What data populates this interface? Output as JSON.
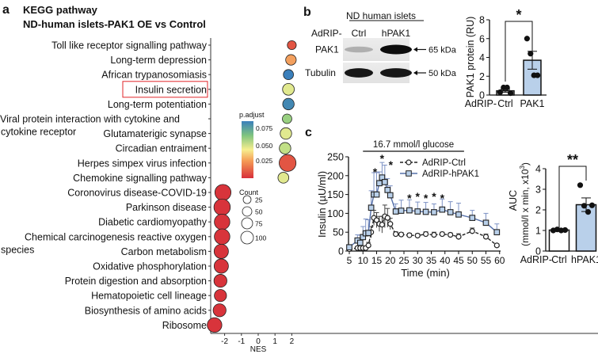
{
  "panel_labels": {
    "a": "a",
    "b": "b",
    "c": "c"
  },
  "colors": {
    "high_sig": "#d7303a",
    "orange": "#f08a4b",
    "yellow": "#f6ef9c",
    "light_green": "#c3df8a",
    "green": "#7fc47f",
    "blue": "#3a7fbb",
    "bar_blue": "#b9d0ea",
    "line_blue": "#5570aa",
    "highlight_box": "#e0262a"
  },
  "chart_data": [
    {
      "id": "a",
      "type": "scatter",
      "title": "KEGG pathway",
      "subtitle": "ND-human islets-PAK1 OE vs Control",
      "xlabel": "NES",
      "xticks": [
        "-2",
        "-1",
        "0",
        "1",
        "2"
      ],
      "xlim": [
        -2.8,
        2.1
      ],
      "highlighted": "Insulin secretion",
      "pathways": [
        {
          "label": [
            "Toll like receptor signalling pathway"
          ],
          "nes": 2.0,
          "count": 18,
          "p_adjust": 0.01
        },
        {
          "label": [
            "Long-term depression"
          ],
          "nes": 1.95,
          "count": 32,
          "p_adjust": 0.03
        },
        {
          "label": [
            "African trypanosomiasis"
          ],
          "nes": 1.8,
          "count": 28,
          "p_adjust": 0.09
        },
        {
          "label": [
            "Insulin secretion"
          ],
          "nes": 1.8,
          "count": 45,
          "p_adjust": 0.055
        },
        {
          "label": [
            "Long-term potentiation"
          ],
          "nes": 1.8,
          "count": 42,
          "p_adjust": 0.088
        },
        {
          "label": [
            "Viral protein interaction with cytokine and",
            "cytokine receptor"
          ],
          "nes": 1.72,
          "count": 22,
          "p_adjust": 0.07
        },
        {
          "label": [
            "Glutamaterigic synapse"
          ],
          "nes": 1.65,
          "count": 42,
          "p_adjust": 0.055
        },
        {
          "label": [
            "Circadian entraiment"
          ],
          "nes": 1.6,
          "count": 42,
          "p_adjust": 0.062
        },
        {
          "label": [
            "Herpes simpex virus infection"
          ],
          "nes": 1.75,
          "count": 125,
          "p_adjust": 0.01
        },
        {
          "label": [
            "Chemokine signalling pathway"
          ],
          "nes": 1.5,
          "count": 35,
          "p_adjust": 0.055
        },
        {
          "label": [
            "Coronovirus disease-COVID-19"
          ],
          "nes": -2.1,
          "count": 110,
          "p_adjust": 0.001
        },
        {
          "label": [
            "Parkinson disease"
          ],
          "nes": -2.15,
          "count": 115,
          "p_adjust": 0.001
        },
        {
          "label": [
            "Diabetic cardiomyopathy"
          ],
          "nes": -2.15,
          "count": 100,
          "p_adjust": 0.001
        },
        {
          "label": [
            "Chemical carcinogenesis reactive oxygen",
            "species"
          ],
          "nes": -2.15,
          "count": 100,
          "p_adjust": 0.001
        },
        {
          "label": [
            "Carbon metabolism"
          ],
          "nes": -2.2,
          "count": 80,
          "p_adjust": 0.001
        },
        {
          "label": [
            "Oxidative phosphorylation"
          ],
          "nes": -2.2,
          "count": 80,
          "p_adjust": 0.001
        },
        {
          "label": [
            "Protein digestion and absorption"
          ],
          "nes": -2.25,
          "count": 60,
          "p_adjust": 0.001
        },
        {
          "label": [
            "Hematopoietic cell lineage"
          ],
          "nes": -2.25,
          "count": 50,
          "p_adjust": 0.001
        },
        {
          "label": [
            "Biosynthesis of amino acids"
          ],
          "nes": -2.3,
          "count": 60,
          "p_adjust": 0.001
        },
        {
          "label": [
            "Ribosome"
          ],
          "nes": -2.6,
          "count": 85,
          "p_adjust": 0.001
        }
      ],
      "color_legend": {
        "title": "p.adjust",
        "ticks": [
          "0.075",
          "0.050",
          "0.025"
        ]
      },
      "size_legend": {
        "title": "Count",
        "values": [
          "25",
          "50",
          "75",
          "100"
        ]
      }
    },
    {
      "id": "b-blot",
      "type": "table",
      "header": "ND human islets",
      "group_prefix": "AdRIP-",
      "lanes": [
        "Ctrl",
        "hPAK1"
      ],
      "rows": [
        {
          "label": "PAK1",
          "marker": "65 kDa",
          "intensity": [
            0.25,
            1.0
          ]
        },
        {
          "label": "Tubulin",
          "marker": "50 kDa",
          "intensity": [
            0.95,
            0.95
          ]
        }
      ]
    },
    {
      "id": "b-bar",
      "type": "bar",
      "ylabel": "PAK1 protein (RU)",
      "yticks": [
        "0",
        "2",
        "4",
        "6",
        "8"
      ],
      "ylim": [
        0,
        8
      ],
      "prefix": "AdRIP-",
      "categories": [
        "Ctrl",
        "PAK1"
      ],
      "values": [
        0.45,
        3.7
      ],
      "errors": [
        0.15,
        0.95
      ],
      "points": [
        [
          0.3,
          0.8,
          0.8,
          0.2
        ],
        [
          6.0,
          4.4,
          2.1,
          2.1
        ]
      ],
      "significance": "*"
    },
    {
      "id": "c-line",
      "type": "line",
      "xlabel": "Time (min)",
      "ylabel": "Insulin (µU/ml)",
      "xticks": [
        "5",
        "10",
        "15",
        "20",
        "25",
        "30",
        "35",
        "40",
        "45",
        "50",
        "55",
        "60"
      ],
      "yticks": [
        "0",
        "50",
        "100",
        "150",
        "200",
        "250"
      ],
      "xlim": [
        5,
        60
      ],
      "ylim": [
        0,
        250
      ],
      "annotation": "16.7 mmol/l glucose",
      "glucose_window": [
        10,
        47
      ],
      "series": [
        {
          "name": "AdRIP-Ctrl",
          "x": [
            5,
            8,
            9,
            10,
            11,
            12,
            13,
            14,
            15,
            16,
            17,
            18,
            19,
            20,
            22,
            24,
            27,
            30,
            33,
            36,
            39,
            42,
            45,
            50,
            55,
            59
          ],
          "y": [
            5,
            8,
            8,
            8,
            8,
            15,
            50,
            88,
            82,
            72,
            70,
            92,
            88,
            72,
            45,
            44,
            42,
            41,
            45,
            43,
            45,
            43,
            38,
            53,
            38,
            15
          ],
          "err": [
            3,
            4,
            4,
            4,
            4,
            8,
            15,
            20,
            20,
            20,
            22,
            30,
            25,
            15,
            6,
            5,
            5,
            5,
            6,
            7,
            5,
            5,
            8,
            8,
            7,
            4
          ]
        },
        {
          "name": "AdRIP-hPAK1",
          "x": [
            5,
            8,
            9,
            10,
            11,
            12,
            13,
            14,
            15,
            16,
            17,
            18,
            19,
            20,
            22,
            24,
            27,
            30,
            33,
            36,
            39,
            42,
            45,
            50,
            55,
            59
          ],
          "y": [
            10,
            28,
            22,
            37,
            47,
            48,
            115,
            150,
            150,
            180,
            195,
            183,
            162,
            148,
            105,
            107,
            108,
            105,
            104,
            103,
            110,
            103,
            97,
            88,
            75,
            50
          ],
          "err": [
            5,
            15,
            20,
            28,
            38,
            35,
            45,
            58,
            58,
            30,
            40,
            45,
            30,
            25,
            20,
            28,
            28,
            25,
            25,
            22,
            28,
            28,
            30,
            20,
            25,
            22
          ]
        }
      ],
      "significance": [
        {
          "x": 15,
          "label": "*"
        },
        {
          "x": 17,
          "label": "*"
        },
        {
          "x": 19,
          "label": "*"
        },
        {
          "x": 27,
          "label": "*"
        },
        {
          "x": 30,
          "label": "*"
        },
        {
          "x": 33,
          "label": "*"
        },
        {
          "x": 36,
          "label": "*"
        },
        {
          "x": 39,
          "label": "*"
        }
      ]
    },
    {
      "id": "c-bar",
      "type": "bar",
      "ylabel": "AUC",
      "ylabel2": "(mmol/l x min, x10",
      "ylabel2_sup": "3",
      "ylabel2_end": ")",
      "yticks": [
        "0",
        "1",
        "2",
        "3",
        "4"
      ],
      "ylim": [
        0,
        4
      ],
      "prefix": "AdRIP-",
      "categories": [
        "Ctrl",
        "hPAK1"
      ],
      "values": [
        1.02,
        2.25
      ],
      "errors": [
        0.04,
        0.33
      ],
      "points": [
        [
          1.0,
          1.05,
          1.0,
          1.02
        ],
        [
          3.2,
          2.2,
          1.9,
          2.22
        ]
      ],
      "significance": "**"
    }
  ]
}
